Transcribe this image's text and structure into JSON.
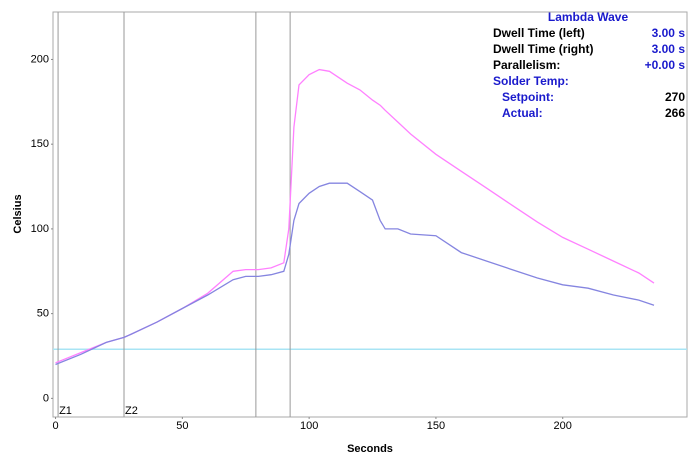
{
  "chart_data": {
    "type": "line",
    "xlabel": "Seconds",
    "ylabel": "Celsius",
    "x": [
      0,
      10,
      20,
      27,
      30,
      40,
      50,
      60,
      70,
      75,
      80,
      85,
      90,
      92,
      94,
      96,
      100,
      104,
      108,
      115,
      120,
      125,
      128,
      130,
      135,
      140,
      150,
      160,
      170,
      180,
      190,
      200,
      210,
      220,
      230,
      236
    ],
    "series": [
      {
        "color": "#ff80ff",
        "values": [
          21,
          27,
          33,
          36,
          38,
          45,
          53,
          62,
          75,
          76,
          76,
          77,
          80,
          100,
          160,
          185,
          191,
          194,
          193,
          186,
          182,
          176,
          173,
          170,
          163,
          156,
          144,
          134,
          124,
          114,
          104,
          95,
          88,
          81,
          74,
          68
        ]
      },
      {
        "color": "#8585e0",
        "values": [
          20,
          26,
          33,
          36,
          38,
          45,
          53,
          61,
          70,
          72,
          72,
          73,
          75,
          85,
          105,
          115,
          121,
          125,
          127,
          127,
          122,
          117,
          105,
          100,
          100,
          97,
          96,
          86,
          81,
          76,
          71,
          67,
          65,
          61,
          58,
          55
        ]
      }
    ],
    "xlim": [
      -1,
      249
    ],
    "ylim": [
      -11,
      228
    ],
    "xticks": [
      0,
      50,
      100,
      150,
      200
    ],
    "yticks": [
      0,
      50,
      100,
      150,
      200
    ],
    "grid": false,
    "hline": {
      "y": 29,
      "color": "#a8e4f4"
    },
    "markers": [
      {
        "x": 1,
        "label": "Z1"
      },
      {
        "x": 27,
        "label": "Z2"
      },
      {
        "x": 79
      },
      {
        "x": 92.5
      }
    ],
    "info_panel": {
      "title": "Lambda Wave",
      "rows": [
        {
          "label": "Dwell Time (left)",
          "value": "3.00 s"
        },
        {
          "label": "Dwell Time (right)",
          "value": "3.00 s"
        },
        {
          "label": "Parallelism:",
          "value": "+0.00 s"
        },
        {
          "label": "Solder Temp:"
        },
        {
          "label": "Setpoint:",
          "value": 270
        },
        {
          "label": "Actual:",
          "value": 266
        }
      ]
    }
  }
}
